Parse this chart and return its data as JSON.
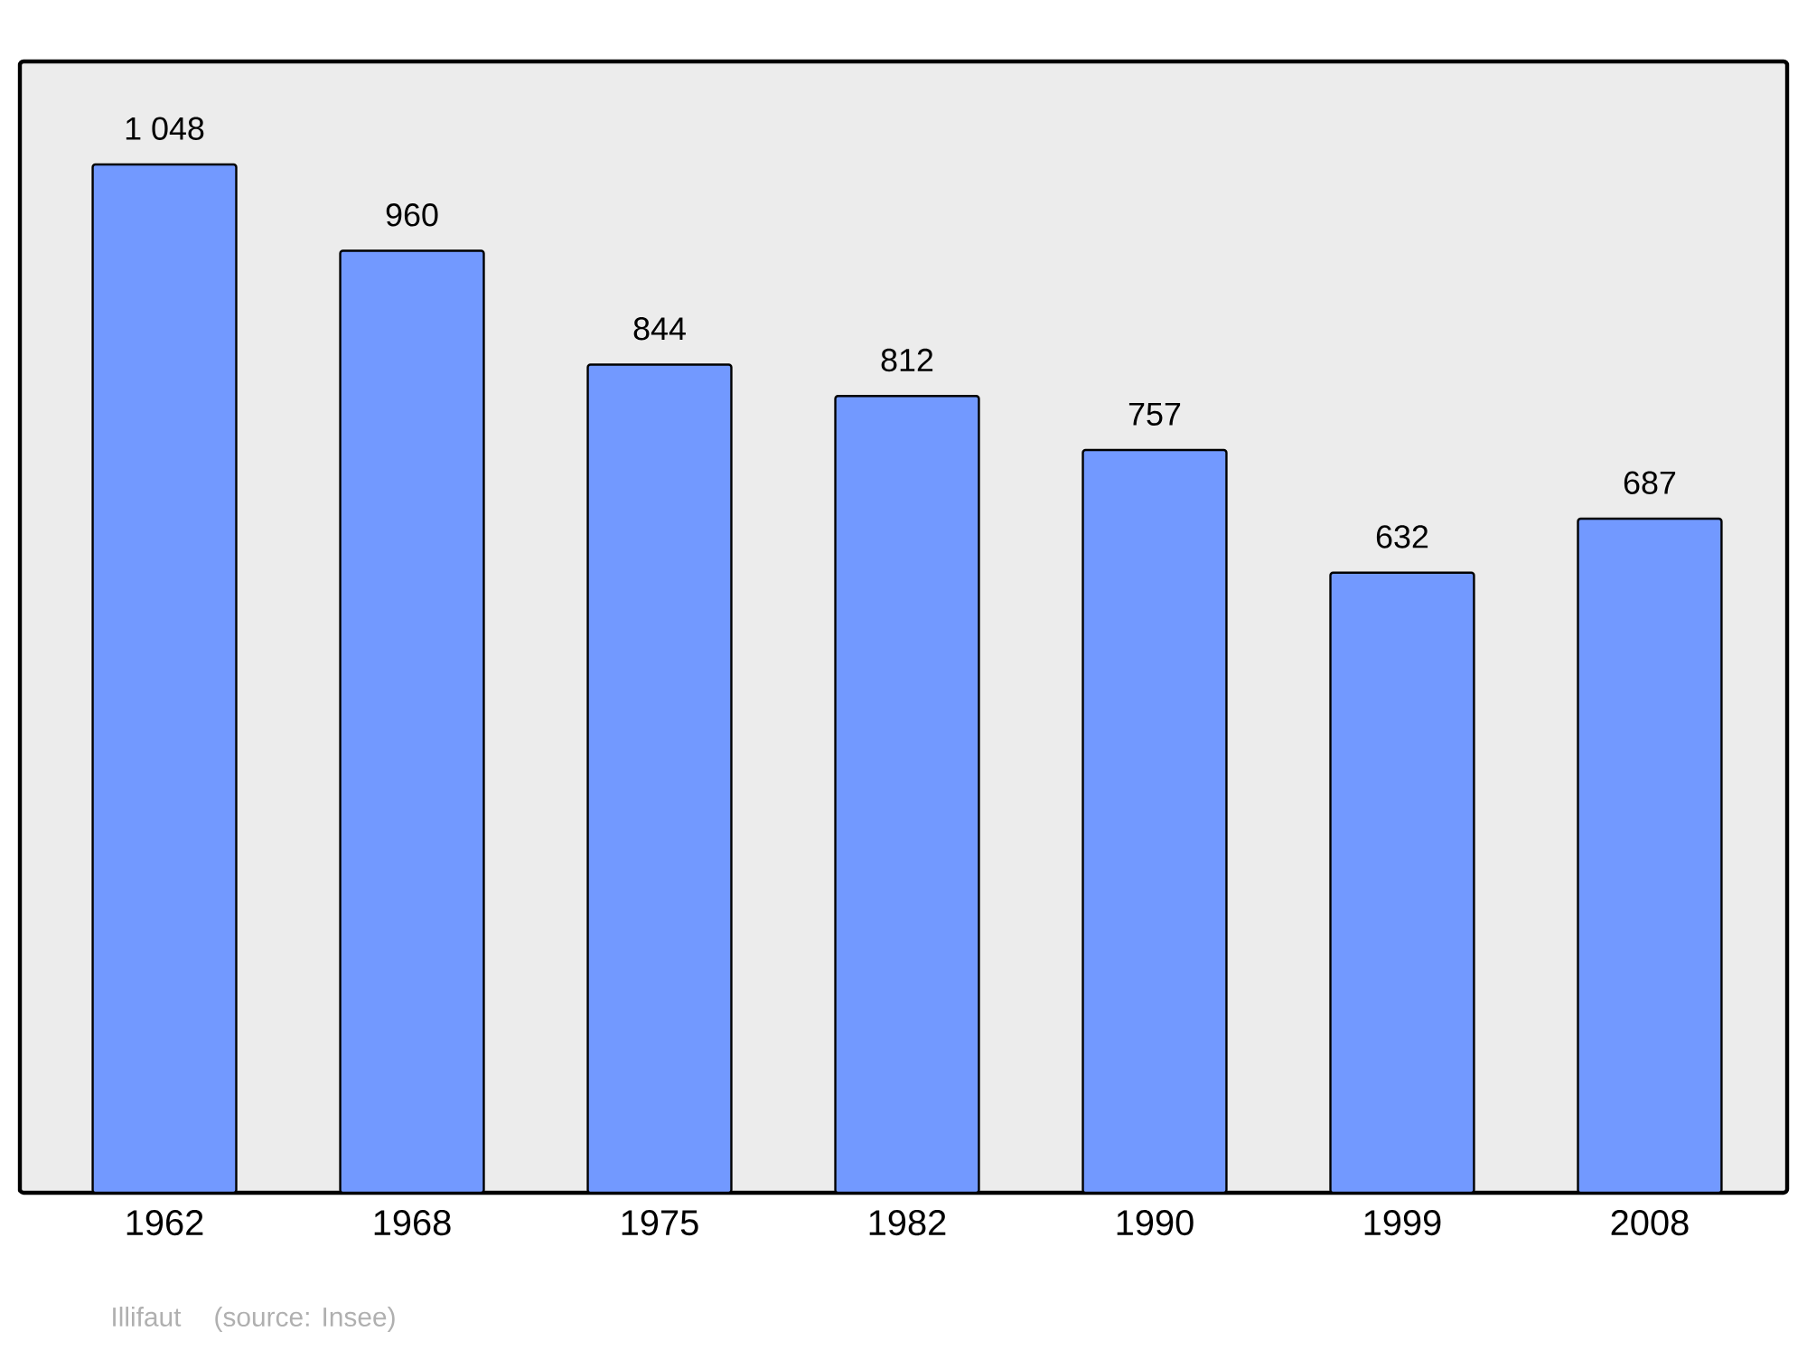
{
  "chart_data": {
    "type": "bar",
    "categories": [
      "1962",
      "1968",
      "1975",
      "1982",
      "1990",
      "1999",
      "2008"
    ],
    "values": [
      1048,
      960,
      844,
      812,
      757,
      632,
      687
    ],
    "value_labels": [
      "1 048",
      "960",
      "844",
      "812",
      "757",
      "632",
      "687"
    ],
    "color": "#7299ff",
    "ylim": [
      0,
      1153
    ],
    "annotations": [
      "Illifaut",
      "(source: Insee)"
    ]
  }
}
